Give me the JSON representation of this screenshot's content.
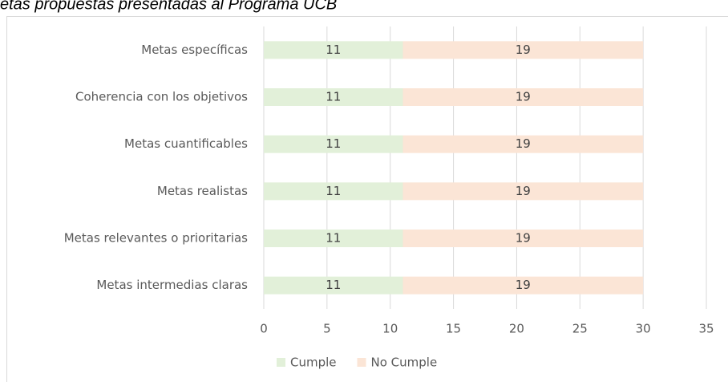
{
  "chart_data": {
    "type": "stacked-bar-horizontal",
    "title": "etas propuestas presentadas al Programa UCB",
    "categories": [
      "Metas específicas",
      "Coherencia con los objetivos",
      "Metas cuantificables",
      "Metas realistas",
      "Metas relevantes o prioritarias",
      "Metas intermedias claras"
    ],
    "series": [
      {
        "name": "Cumple",
        "color": "#e2f0d9",
        "values": [
          11,
          11,
          11,
          11,
          11,
          11
        ]
      },
      {
        "name": "No Cumple",
        "color": "#fbe5d6",
        "values": [
          19,
          19,
          19,
          19,
          19,
          19
        ]
      }
    ],
    "xlim": [
      0,
      35
    ],
    "xticks": [
      0,
      5,
      10,
      15,
      20,
      25,
      30,
      35
    ],
    "grid": true,
    "legend": "bottom"
  }
}
